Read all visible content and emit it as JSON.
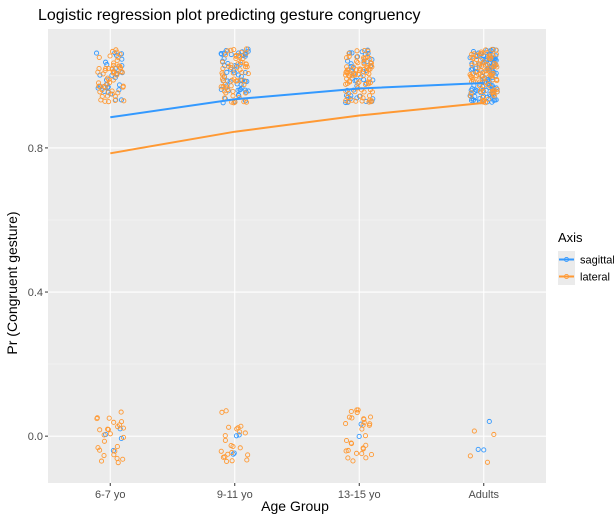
{
  "chart_data": {
    "type": "scatter",
    "title": "Logistic regression plot predicting gesture congruency",
    "xlabel": "Age Group",
    "ylabel": "Pr (Congruent gesture)",
    "categories": [
      "6-7 yo",
      "9-11 yo",
      "13-15 yo",
      "Adults"
    ],
    "y_ticks": [
      0.0,
      0.4,
      0.8
    ],
    "y_tick_labels": [
      "0.0",
      "0.4",
      "0.8"
    ],
    "ylim": [
      -0.13,
      1.13
    ],
    "grid": true,
    "legend": {
      "title": "Axis",
      "placement": "right",
      "entries": [
        "sagittal",
        "lateral"
      ]
    },
    "series": [
      {
        "name": "sagittal",
        "color": "#3399ff",
        "fitted": [
          0.885,
          0.935,
          0.965,
          0.98
        ],
        "points": [
          {
            "category": "6-7 yo",
            "outcome": 1,
            "count": 30
          },
          {
            "category": "6-7 yo",
            "outcome": 0,
            "count": 4
          },
          {
            "category": "9-11 yo",
            "outcome": 1,
            "count": 55
          },
          {
            "category": "9-11 yo",
            "outcome": 0,
            "count": 4
          },
          {
            "category": "13-15 yo",
            "outcome": 1,
            "count": 40
          },
          {
            "category": "13-15 yo",
            "outcome": 0,
            "count": 2
          },
          {
            "category": "Adults",
            "outcome": 1,
            "count": 110
          },
          {
            "category": "Adults",
            "outcome": 0,
            "count": 3
          }
        ]
      },
      {
        "name": "lateral",
        "color": "#ff9933",
        "fitted": [
          0.785,
          0.845,
          0.89,
          0.925
        ],
        "points": [
          {
            "category": "6-7 yo",
            "outcome": 1,
            "count": 55
          },
          {
            "category": "6-7 yo",
            "outcome": 0,
            "count": 26
          },
          {
            "category": "9-11 yo",
            "outcome": 1,
            "count": 60
          },
          {
            "category": "9-11 yo",
            "outcome": 0,
            "count": 22
          },
          {
            "category": "13-15 yo",
            "outcome": 1,
            "count": 80
          },
          {
            "category": "13-15 yo",
            "outcome": 0,
            "count": 30
          },
          {
            "category": "Adults",
            "outcome": 1,
            "count": 90
          },
          {
            "category": "Adults",
            "outcome": 0,
            "count": 4
          }
        ]
      }
    ]
  }
}
